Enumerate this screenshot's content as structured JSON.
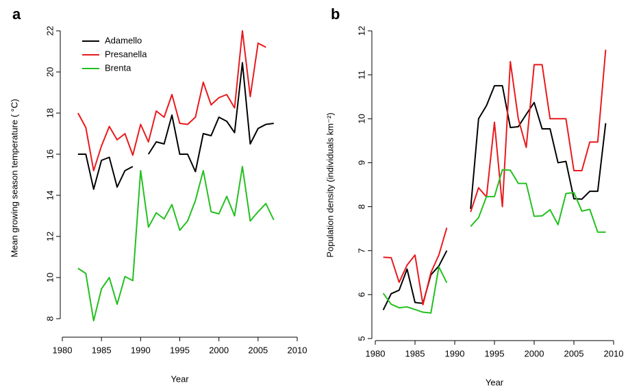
{
  "chart_data": [
    {
      "type": "line",
      "panel_label": "a",
      "y_label": "Mean growing season temperature ( °C)",
      "x_label": "Year",
      "x": [
        1982,
        1983,
        1984,
        1985,
        1986,
        1987,
        1988,
        1989,
        1990,
        1991,
        1992,
        1993,
        1994,
        1995,
        1996,
        1997,
        1998,
        1999,
        2000,
        2001,
        2002,
        2003,
        2004,
        2005,
        2006,
        2007
      ],
      "series": [
        {
          "name": "Adamello",
          "color": "#000000",
          "values": [
            16.0,
            16.0,
            14.3,
            15.7,
            15.85,
            14.4,
            15.2,
            15.4,
            null,
            16.0,
            16.6,
            16.5,
            17.9,
            16.0,
            16.0,
            15.15,
            17.0,
            16.9,
            17.8,
            17.6,
            17.05,
            20.45,
            16.5,
            17.25,
            17.45,
            17.5
          ]
        },
        {
          "name": "Presanella",
          "color": "#e8191c",
          "values": [
            18.0,
            17.3,
            15.2,
            16.4,
            17.35,
            16.7,
            17.0,
            15.95,
            17.45,
            16.6,
            18.1,
            17.8,
            18.9,
            17.5,
            17.45,
            17.8,
            19.5,
            18.4,
            18.75,
            18.9,
            18.25,
            22.0,
            18.8,
            21.4,
            21.2,
            null
          ]
        },
        {
          "name": "Brenta",
          "color": "#22c01e",
          "values": [
            10.45,
            10.2,
            7.9,
            9.45,
            10.0,
            8.7,
            10.05,
            9.85,
            15.2,
            12.45,
            13.15,
            12.85,
            13.55,
            12.3,
            12.75,
            13.75,
            15.2,
            13.2,
            13.1,
            13.95,
            13.0,
            15.4,
            12.75,
            13.2,
            13.6,
            12.8
          ]
        }
      ],
      "xlim": [
        1980,
        2010
      ],
      "xticks": [
        1980,
        1985,
        1990,
        1995,
        2000,
        2005,
        2010
      ],
      "ylim": [
        7.1,
        22.6
      ],
      "yticks": [
        8,
        10,
        12,
        14,
        16,
        18,
        20,
        22
      ],
      "legend": "top-left"
    },
    {
      "type": "line",
      "panel_label": "b",
      "y_label": "Population density (individuals km⁻²)",
      "x_label": "Year",
      "x": [
        1981,
        1982,
        1983,
        1984,
        1985,
        1986,
        1987,
        1988,
        1989,
        1990,
        1991,
        1992,
        1993,
        1994,
        1995,
        1996,
        1997,
        1998,
        1999,
        2000,
        2001,
        2002,
        2003,
        2004,
        2005,
        2006,
        2007,
        2008,
        2009
      ],
      "series": [
        {
          "color": "#000000",
          "values": [
            5.65,
            6.02,
            6.1,
            6.58,
            5.82,
            5.8,
            6.45,
            6.65,
            7.0,
            null,
            null,
            7.95,
            10.0,
            10.3,
            10.75,
            10.75,
            9.8,
            9.82,
            10.1,
            10.37,
            9.77,
            9.77,
            9.0,
            9.03,
            8.18,
            8.17,
            8.35,
            8.35,
            9.9
          ]
        },
        {
          "color": "#e8191c",
          "values": [
            6.85,
            6.84,
            6.28,
            6.67,
            6.9,
            5.77,
            6.5,
            6.9,
            7.52,
            null,
            null,
            7.88,
            8.43,
            8.22,
            9.92,
            8.0,
            11.3,
            10.0,
            9.35,
            11.23,
            11.23,
            10.0,
            10.0,
            10.0,
            8.82,
            8.82,
            9.47,
            9.47,
            11.57
          ]
        },
        {
          "color": "#22c01e",
          "values": [
            6.03,
            5.78,
            5.7,
            5.72,
            5.66,
            5.6,
            5.58,
            6.63,
            6.27,
            null,
            null,
            7.55,
            7.75,
            8.23,
            8.23,
            8.84,
            8.83,
            8.53,
            8.53,
            7.78,
            7.79,
            7.93,
            7.59,
            8.3,
            8.32,
            7.9,
            7.94,
            7.42,
            7.42
          ]
        }
      ],
      "xlim": [
        1980,
        2010
      ],
      "xticks": [
        1980,
        1985,
        1990,
        1995,
        2000,
        2005,
        2010
      ],
      "ylim": [
        5,
        12
      ],
      "yticks": [
        5,
        6,
        7,
        8,
        9,
        10,
        11,
        12
      ]
    }
  ]
}
